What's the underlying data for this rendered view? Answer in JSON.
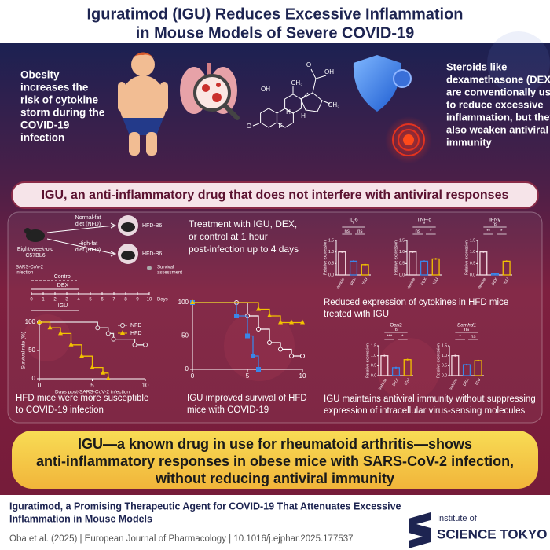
{
  "header": {
    "title": [
      "Iguratimod (IGU) Reduces Excessive Inflammation",
      "in Mouse Models of Severe COVID-19"
    ]
  },
  "intro": {
    "obesity": [
      "Obesity",
      "increases the",
      "risk of cytokine",
      "storm during the",
      "COVID-19",
      "infection"
    ],
    "steroids": [
      "Steroids like",
      "dexamethasone (DEX)",
      "are conventionally used",
      "to reduce excessive",
      "inflammation, but they",
      "also weaken antiviral",
      "immunity"
    ],
    "molecule_labels": [
      "O",
      "OH",
      "O",
      "OH",
      "CH₃",
      "CH₃",
      "F",
      "H",
      "H"
    ]
  },
  "banner": "IGU, an anti-inflammatory drug that does not interfere with antiviral responses",
  "experiment": {
    "mouse_start": [
      "Eight-week-old",
      "C57BL6"
    ],
    "nfd": [
      "Normal-fat",
      "diet (NFD)"
    ],
    "hfd": [
      "High-fat",
      "diet (HFD)"
    ],
    "group_labels": [
      "HFD-B6",
      "HFD-B6"
    ],
    "timeline": {
      "infection": [
        "SARS-CoV-2",
        "infection"
      ],
      "arms": [
        "Control",
        "DEX",
        "IGU"
      ],
      "survival": [
        "Survival",
        "assessment"
      ],
      "days": [
        0,
        1,
        2,
        3,
        4,
        5,
        6,
        7,
        8,
        9,
        10
      ],
      "axis_label": "Days"
    }
  },
  "treatment_note": [
    "Treatment with IGU, DEX,",
    "or control at 1 hour",
    "post-infection up to 4 days"
  ],
  "chart_data": [
    {
      "type": "step",
      "xlim": [
        0,
        10
      ],
      "ylim": [
        0,
        100
      ],
      "xticks": [
        0,
        5,
        10
      ],
      "yticks": [
        0,
        50,
        100
      ],
      "ylabel": "Survival rate (%)",
      "xlabel": "Days post-SARS-CoV-2 infection",
      "legend": "upper right",
      "series": [
        {
          "name": "NFD",
          "color": "#e6e6e6",
          "marker": "circle",
          "x": [
            0,
            5.5,
            6.5,
            7,
            9,
            10
          ],
          "values": [
            100,
            90,
            80,
            70,
            60,
            60
          ]
        },
        {
          "name": "HFD",
          "color": "#f2c200",
          "marker": "triangle",
          "x": [
            0,
            1,
            2,
            3,
            4,
            5,
            6,
            6.5
          ],
          "values": [
            100,
            90,
            80,
            60,
            40,
            20,
            10,
            0
          ]
        }
      ]
    },
    {
      "type": "step",
      "xlim": [
        0,
        10
      ],
      "ylim": [
        0,
        100
      ],
      "xticks": [
        0,
        5,
        10
      ],
      "yticks": [
        0,
        50,
        100
      ],
      "series": [
        {
          "color": "#ffffff",
          "marker": "circle",
          "x": [
            0,
            4,
            5,
            6,
            7,
            8,
            9,
            10
          ],
          "values": [
            100,
            100,
            80,
            60,
            40,
            30,
            20,
            20
          ]
        },
        {
          "color": "#3a86e8",
          "marker": "square",
          "x": [
            0,
            4,
            5,
            5.5,
            6
          ],
          "values": [
            100,
            80,
            50,
            20,
            0
          ]
        },
        {
          "color": "#f2c200",
          "marker": "triangle",
          "x": [
            0,
            6,
            7,
            8,
            9,
            10
          ],
          "values": [
            100,
            90,
            80,
            70,
            70,
            70
          ]
        }
      ]
    },
    {
      "type": "bar",
      "title": "IL-6",
      "ylabel": "Relative expression",
      "categories": [
        "Vehicle",
        "DEX",
        "IGU"
      ],
      "values": [
        1.0,
        0.6,
        0.45
      ],
      "colors": [
        "#f5dce3",
        "#3a86e8",
        "#f2c200"
      ],
      "ylim": [
        0,
        1.5
      ],
      "yticks": [
        {
          "value": 0,
          "label": "0.0"
        },
        {
          "value": 0.5,
          "label": "0.5"
        },
        {
          "value": 1,
          "label": "1.0"
        },
        {
          "value": 1.5,
          "label": "1.5"
        }
      ],
      "significance": [
        "*",
        "ns",
        "ns"
      ]
    },
    {
      "type": "bar",
      "title": "TNF-α",
      "ylabel": "Relative expression",
      "categories": [
        "Vehicle",
        "DEX",
        "IGU"
      ],
      "values": [
        1.0,
        0.6,
        0.7
      ],
      "colors": [
        "#f5dce3",
        "#3a86e8",
        "#f2c200"
      ],
      "ylim": [
        0,
        1.5
      ],
      "yticks": [
        {
          "value": 0,
          "label": "0.0"
        },
        {
          "value": 0.5,
          "label": "0.5"
        },
        {
          "value": 1,
          "label": "1.0"
        },
        {
          "value": 1.5,
          "label": "1.5"
        }
      ],
      "significance": [
        "*",
        "ns",
        "*"
      ]
    },
    {
      "type": "bar",
      "title": "IFNγ",
      "ylabel": "Relative expression",
      "categories": [
        "Vehicle",
        "DEX",
        "IGU"
      ],
      "values": [
        1.0,
        0.05,
        0.6
      ],
      "colors": [
        "#f5dce3",
        "#3a86e8",
        "#f2c200"
      ],
      "ylim": [
        0,
        1.5
      ],
      "yticks": [
        {
          "value": 0,
          "label": "0.0"
        },
        {
          "value": 0.5,
          "label": "0.5"
        },
        {
          "value": 1,
          "label": "1.0"
        },
        {
          "value": 1.5,
          "label": "1.5"
        }
      ],
      "significance": [
        "ns",
        "**",
        "*"
      ]
    },
    {
      "type": "bar",
      "title": "Oas2",
      "ylabel": "Relative expression",
      "categories": [
        "Vehicle",
        "DEX",
        "IGU"
      ],
      "values": [
        1.0,
        0.4,
        0.8
      ],
      "colors": [
        "#f5dce3",
        "#3a86e8",
        "#f2c200"
      ],
      "ylim": [
        0,
        1.5
      ],
      "yticks": [
        {
          "value": 0,
          "label": "0.0"
        },
        {
          "value": 0.5,
          "label": "0.5"
        },
        {
          "value": 1,
          "label": "1.0"
        },
        {
          "value": 1.5,
          "label": "1.5"
        }
      ],
      "significance": [
        "ns",
        "***",
        "*"
      ]
    },
    {
      "type": "bar",
      "title": "Samhd1",
      "ylabel": "Relative expression",
      "categories": [
        "Vehicle",
        "DEX",
        "IGU"
      ],
      "values": [
        1.0,
        0.55,
        0.75
      ],
      "colors": [
        "#f5dce3",
        "#3a86e8",
        "#f2c200"
      ],
      "ylim": [
        0,
        1.5
      ],
      "yticks": [
        {
          "value": 0,
          "label": "0.0"
        },
        {
          "value": 0.5,
          "label": "0.5"
        },
        {
          "value": 1,
          "label": "1.0"
        },
        {
          "value": 1.5,
          "label": "1.5"
        }
      ],
      "significance": [
        "ns",
        "*",
        "ns"
      ]
    }
  ],
  "captions": {
    "susceptibility": [
      "HFD mice were more susceptible",
      "to COVID-19 infection"
    ],
    "survival": [
      "IGU improved survival of HFD",
      "mice with COVID-19"
    ],
    "cytokines": [
      "Reduced expression of cytokines in HFD mice",
      "treated with IGU"
    ],
    "antiviral": [
      "IGU maintains antiviral immunity without suppressing",
      "expression of intracellular virus-sensing molecules"
    ]
  },
  "conclusion": [
    "IGU—a known drug in use for rheumatoid arthritis—shows",
    "anti-inflammatory responses in obese mice with SARS-CoV-2 infection,",
    "without reducing antiviral immunity"
  ],
  "footer": {
    "title": [
      "Iguratimod, a Promising Therapeutic Agent for COVID-19 That Attenuates Excessive",
      "Inflammation in Mouse Models"
    ],
    "citation": "Oba et al. (2025) | European Journal of Pharmacology | 10.1016/j.ejphar.2025.177537",
    "logo": [
      "Institute of",
      "SCIENCE TOKYO"
    ]
  }
}
